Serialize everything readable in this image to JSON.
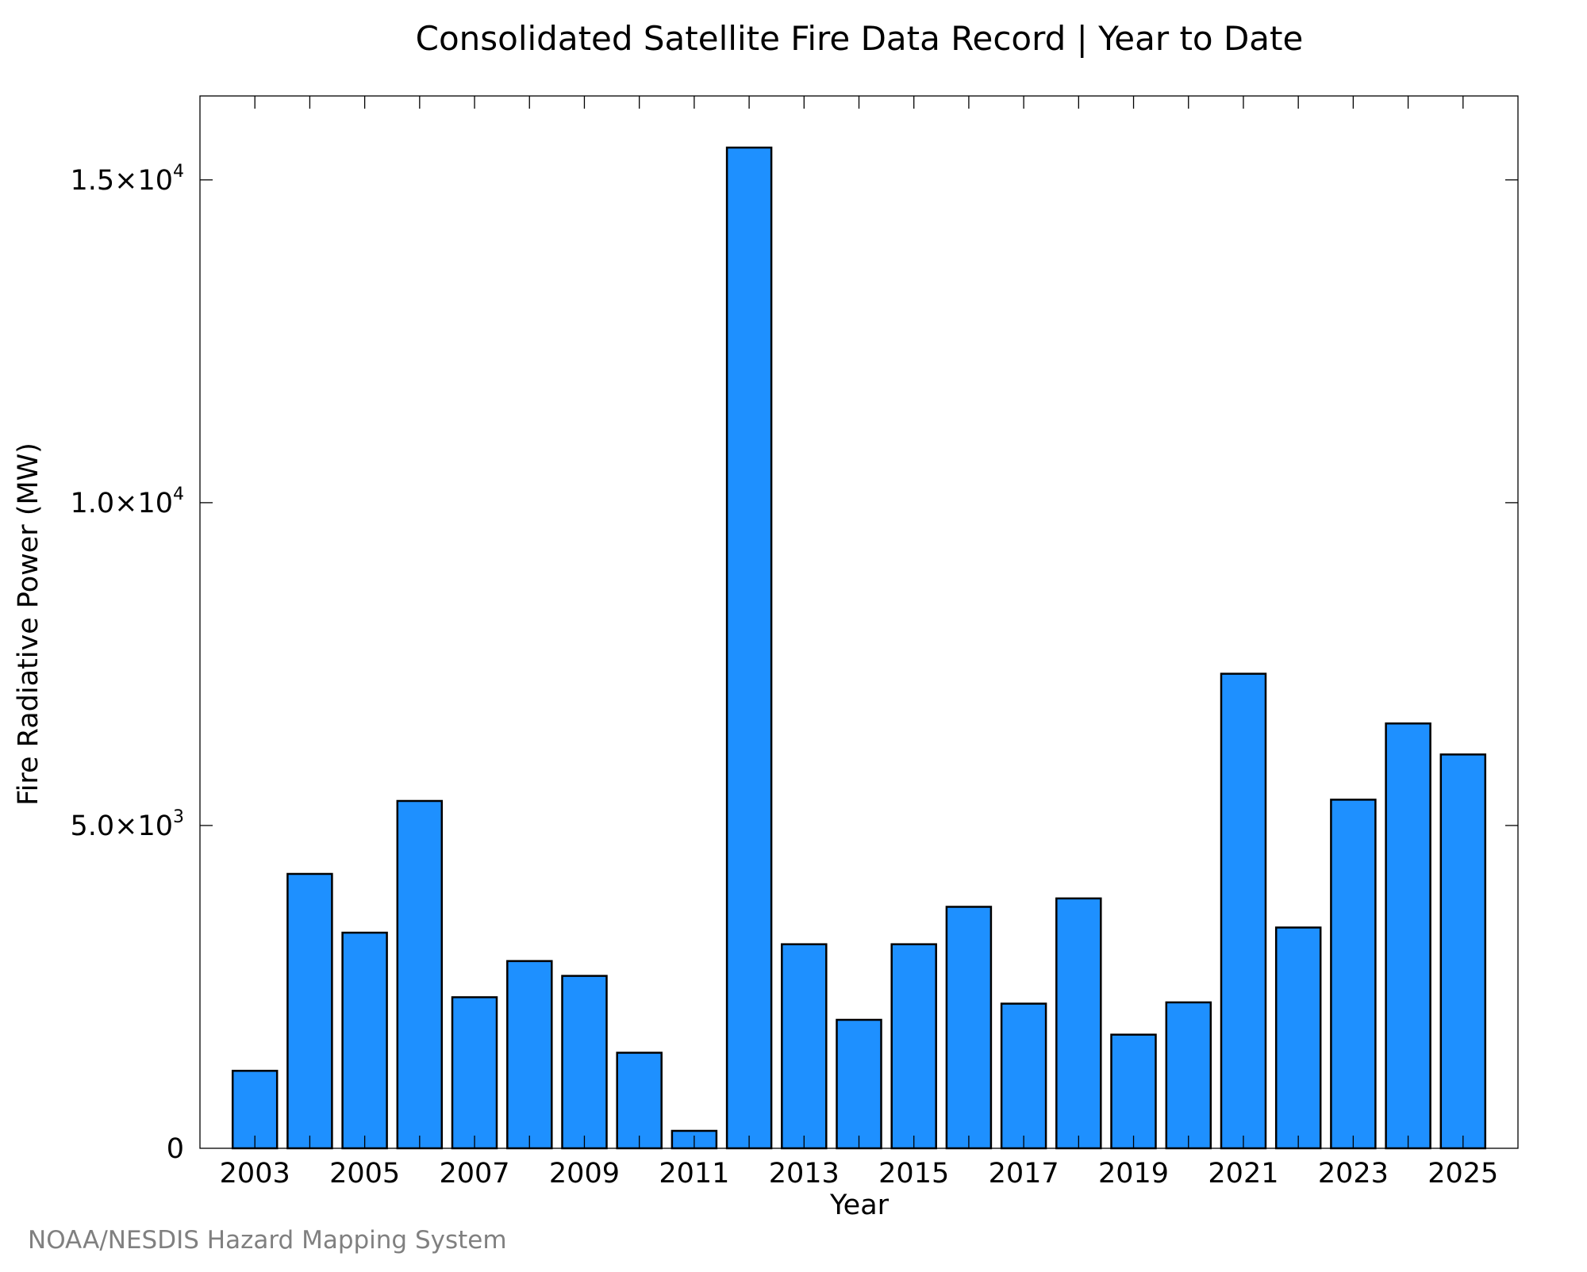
{
  "chart_data": {
    "type": "bar",
    "title": "Consolidated Satellite Fire Data Record | Year to Date",
    "xlabel": "Year",
    "ylabel": "Fire Radiative Power (MW)",
    "credit": "NOAA/NESDIS Hazard Mapping System",
    "categories": [
      2003,
      2004,
      2005,
      2006,
      2007,
      2008,
      2009,
      2010,
      2011,
      2012,
      2013,
      2014,
      2015,
      2016,
      2017,
      2018,
      2019,
      2020,
      2021,
      2022,
      2023,
      2024,
      2025
    ],
    "values": [
      1200,
      4250,
      3340,
      5380,
      2340,
      2900,
      2670,
      1480,
      270,
      15500,
      3160,
      1990,
      3160,
      3740,
      2240,
      3870,
      1760,
      2260,
      7350,
      3420,
      5400,
      6580,
      6100
    ],
    "xticks": [
      "2003",
      "2005",
      "2007",
      "2009",
      "2011",
      "2013",
      "2015",
      "2017",
      "2019",
      "2021",
      "2023",
      "2025"
    ],
    "yticks": [
      {
        "value": 0,
        "mantissa": "0",
        "exponent": ""
      },
      {
        "value": 5000,
        "mantissa": "5.0×10",
        "exponent": "3"
      },
      {
        "value": 10000,
        "mantissa": "1.0×10",
        "exponent": "4"
      },
      {
        "value": 15000,
        "mantissa": "1.5×10",
        "exponent": "4"
      }
    ],
    "xlim": [
      2002,
      2026
    ],
    "ylim": [
      0,
      16300
    ],
    "bar_color": "#1e90ff",
    "bar_edge_color": "#000000",
    "credit_color": "#808080",
    "grid": false,
    "legend": "none"
  }
}
